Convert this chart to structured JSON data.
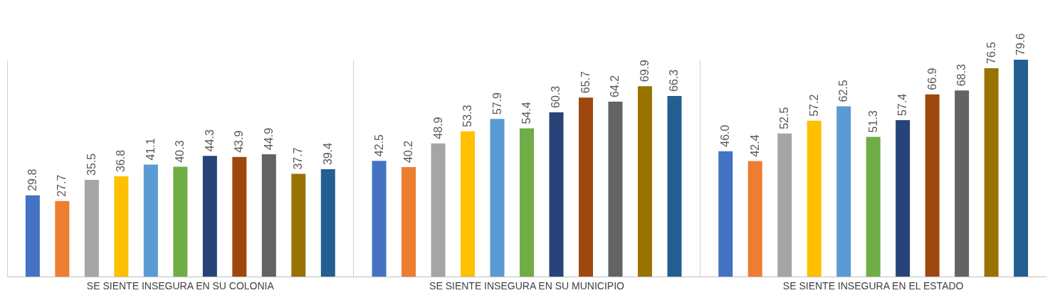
{
  "chart_data": {
    "type": "bar",
    "categories": [
      "SE SIENTE INSEGURA EN SU COLONIA",
      "SE SIENTE INSEGURA EN SU MUNICIPIO",
      "SE SIENTE INSEGURA EN EL ESTADO"
    ],
    "series": [
      {
        "color": "#4472c4",
        "values": [
          29.8,
          42.5,
          46.0
        ],
        "value_labels": [
          "29.8",
          "42.5",
          "46.0"
        ]
      },
      {
        "color": "#ed7d31",
        "values": [
          27.7,
          40.2,
          42.4
        ],
        "value_labels": [
          "27.7",
          "40.2",
          "42.4"
        ]
      },
      {
        "color": "#a5a5a5",
        "values": [
          35.5,
          48.9,
          52.5
        ],
        "value_labels": [
          "35.5",
          "48.9",
          "52.5"
        ]
      },
      {
        "color": "#ffc000",
        "values": [
          36.8,
          53.3,
          57.2
        ],
        "value_labels": [
          "36.8",
          "53.3",
          "57.2"
        ]
      },
      {
        "color": "#5b9bd5",
        "values": [
          41.1,
          57.9,
          62.5
        ],
        "value_labels": [
          "41.1",
          "57.9",
          "62.5"
        ]
      },
      {
        "color": "#70ad47",
        "values": [
          40.3,
          54.4,
          51.3
        ],
        "value_labels": [
          "40.3",
          "54.4",
          "51.3"
        ]
      },
      {
        "color": "#264478",
        "values": [
          44.3,
          60.3,
          57.4
        ],
        "value_labels": [
          "44.3",
          "60.3",
          "57.4"
        ]
      },
      {
        "color": "#9e480e",
        "values": [
          43.9,
          65.7,
          66.9
        ],
        "value_labels": [
          "43.9",
          "65.7",
          "66.9"
        ]
      },
      {
        "color": "#636363",
        "values": [
          44.9,
          64.2,
          68.3
        ],
        "value_labels": [
          "44.9",
          "64.2",
          "68.3"
        ]
      },
      {
        "color": "#997300",
        "values": [
          37.7,
          69.9,
          76.5
        ],
        "value_labels": [
          "37.7",
          "69.9",
          "76.5"
        ]
      },
      {
        "color": "#255e91",
        "values": [
          39.4,
          66.3,
          79.6
        ],
        "value_labels": [
          "39.4",
          "66.3",
          "79.6"
        ]
      }
    ],
    "grid": "x",
    "legend": false
  }
}
